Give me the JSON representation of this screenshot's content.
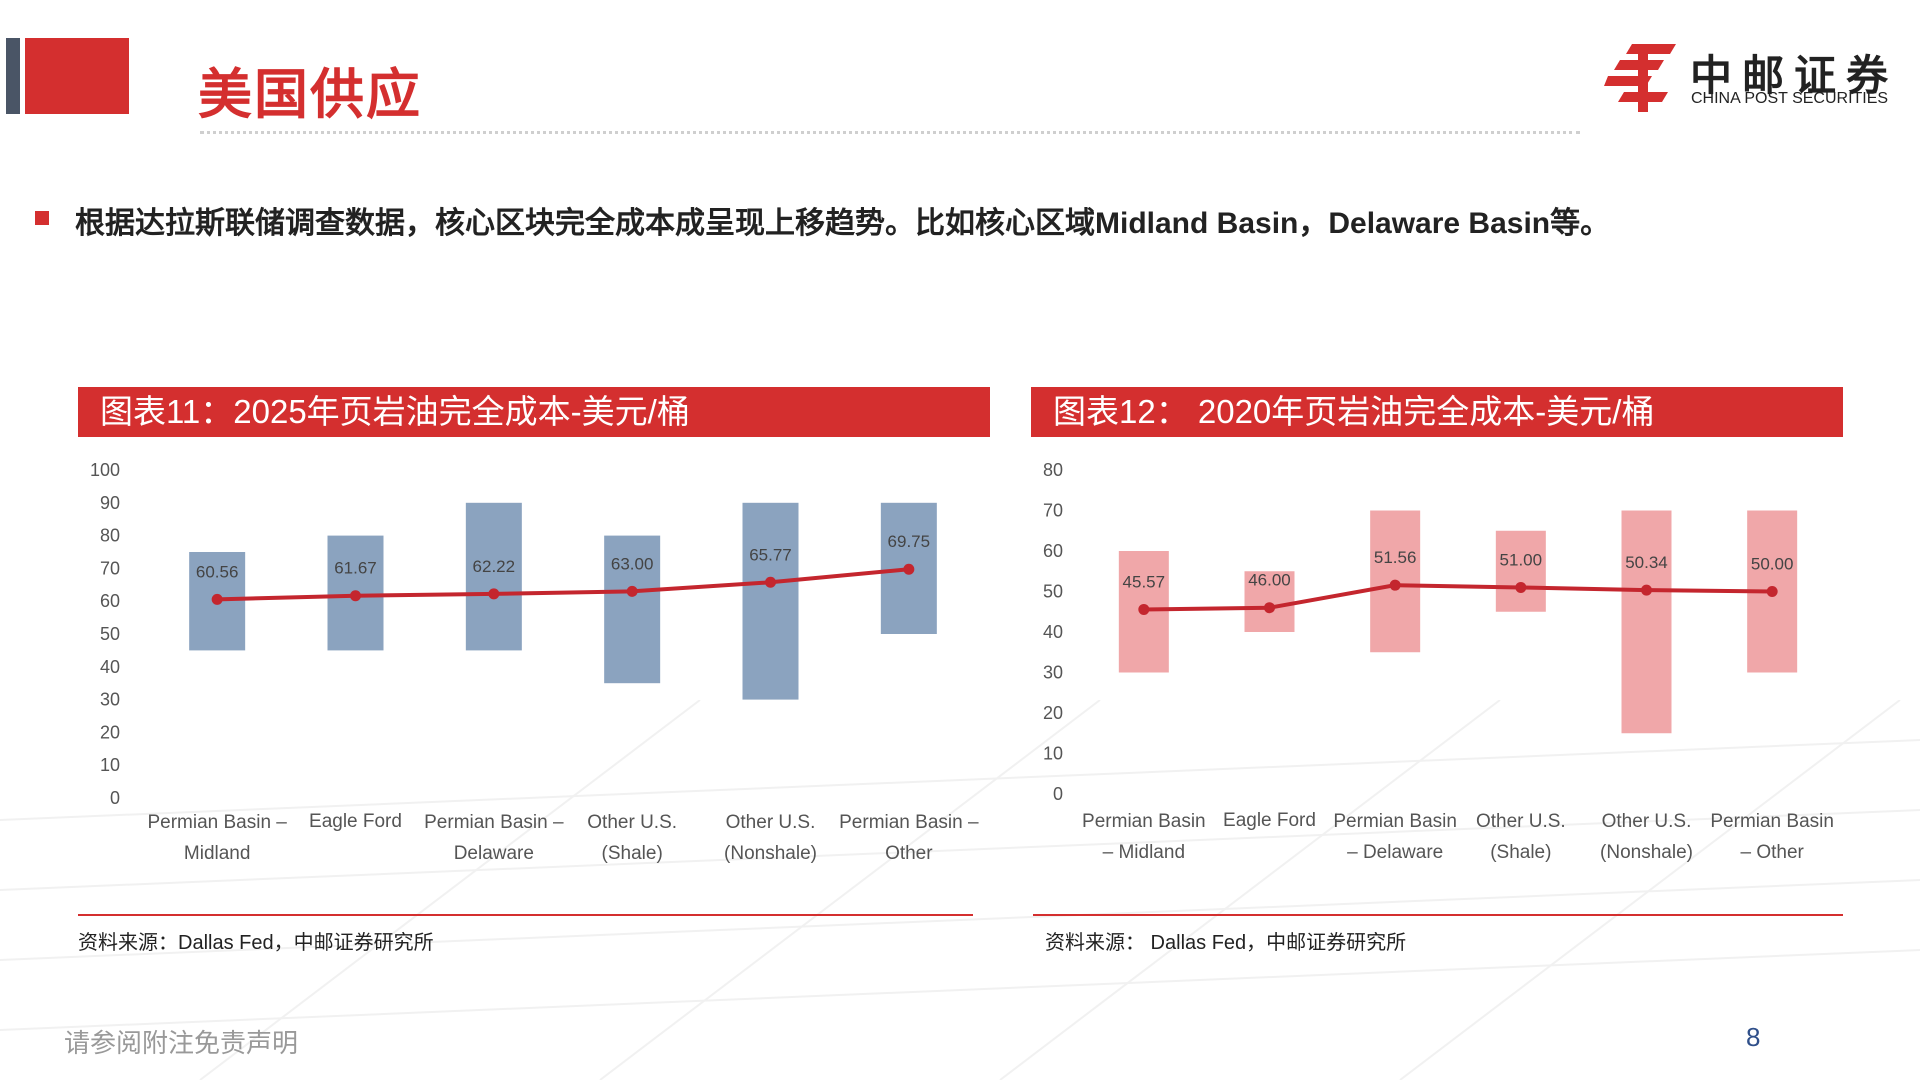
{
  "header": {
    "title": "美国供应",
    "logo_cn": "中邮证券",
    "logo_en": "CHINA POST SECURITIES"
  },
  "bullet": "根据达拉斯联储调查数据，核心区块完全成本成呈现上移趋势。比如核心区域Midland Basin，Delaware Basin等。",
  "charts": [
    {
      "header": "图表11：2025年页岩油完全成本-美元/桶",
      "source": "资料来源：Dallas Fed，中邮证券研究所"
    },
    {
      "header": "图表12：  2020年页岩油完全成本-美元/桶",
      "source": "资料来源：  Dallas Fed，中邮证券研究所"
    }
  ],
  "chart_data": [
    {
      "type": "bar",
      "subtype": "floating-range-with-line",
      "title": "图表11：2025年页岩油完全成本-美元/桶",
      "categories": [
        [
          "Permian Basin –",
          "Midland"
        ],
        [
          "Eagle Ford"
        ],
        [
          "Permian Basin –",
          "Delaware"
        ],
        [
          "Other U.S.",
          "(Shale)"
        ],
        [
          "Other U.S.",
          "(Nonshale)"
        ],
        [
          "Permian Basin –",
          "Other"
        ]
      ],
      "range_low": [
        45,
        45,
        45,
        35,
        30,
        50
      ],
      "range_high": [
        75,
        80,
        90,
        80,
        90,
        90
      ],
      "values": [
        60.56,
        61.67,
        62.22,
        63.0,
        65.77,
        69.75
      ],
      "value_labels": [
        "60.56",
        "61.67",
        "62.22",
        "63.00",
        "65.77",
        "69.75"
      ],
      "ylim": [
        0,
        100
      ],
      "yticks": [
        0,
        10,
        20,
        30,
        40,
        50,
        60,
        70,
        80,
        90,
        100
      ],
      "grid": false,
      "bar_color": "#8ba3bf",
      "line_color": "#c4262e"
    },
    {
      "type": "bar",
      "subtype": "floating-range-with-line",
      "title": "图表12：  2020年页岩油完全成本-美元/桶",
      "categories": [
        [
          "Permian Basin",
          "– Midland"
        ],
        [
          "Eagle Ford"
        ],
        [
          "Permian Basin",
          "– Delaware"
        ],
        [
          "Other U.S.",
          "(Shale)"
        ],
        [
          "Other U.S.",
          "(Nonshale)"
        ],
        [
          "Permian Basin",
          "– Other"
        ]
      ],
      "range_low": [
        30,
        40,
        35,
        45,
        15,
        30
      ],
      "range_high": [
        60,
        55,
        70,
        65,
        70,
        70
      ],
      "values": [
        45.57,
        46.0,
        51.56,
        51.0,
        50.34,
        50.0
      ],
      "value_labels": [
        "45.57",
        "46.00",
        "51.56",
        "51.00",
        "50.34",
        "50.00"
      ],
      "ylim": [
        0,
        80
      ],
      "yticks": [
        0,
        10,
        20,
        30,
        40,
        50,
        60,
        70,
        80
      ],
      "grid": false,
      "bar_color": "#f0a7a9",
      "line_color": "#c4262e"
    }
  ],
  "footer": {
    "disclaimer": "请参阅附注免责声明",
    "page": "8"
  }
}
